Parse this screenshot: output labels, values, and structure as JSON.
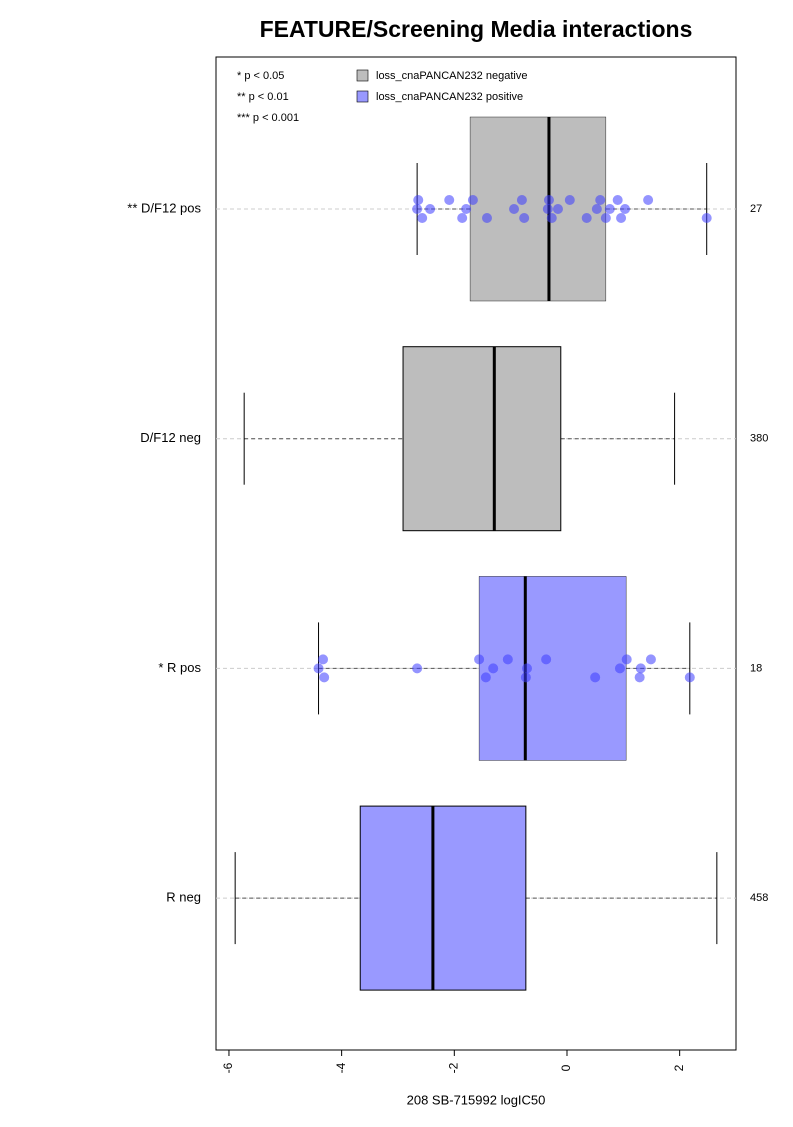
{
  "chart_data": {
    "type": "box",
    "title": "FEATURE/Screening Media interactions",
    "x_label": "208 SB-715992 logIC50",
    "xlim": [
      -6.23,
      3.0
    ],
    "xticks": [
      -6,
      -4,
      -2,
      0,
      2
    ],
    "notes": [
      "* p < 0.05",
      "** p < 0.01",
      "*** p < 0.001"
    ],
    "series": [
      {
        "name": "loss_cnaPANCAN232 negative",
        "color": "#bdbdbd"
      },
      {
        "name": "loss_cnaPANCAN232 positive",
        "color": "#9999ff"
      }
    ],
    "categories": [
      "** D/F12 pos",
      "D/F12 neg",
      "* R pos",
      "R neg"
    ],
    "counts": [
      "27",
      "380",
      "18",
      "458"
    ],
    "groups": [
      0,
      0,
      1,
      1
    ],
    "positive": [
      true,
      false,
      true,
      false
    ],
    "whisker_low": [
      -2.66,
      -5.73,
      -4.41,
      -5.89
    ],
    "q1": [
      -1.72,
      -2.91,
      -1.56,
      -3.67
    ],
    "median": [
      -0.32,
      -1.29,
      -0.74,
      -2.38
    ],
    "q3": [
      0.69,
      -0.11,
      1.05,
      -0.73
    ],
    "whisker_high": [
      2.48,
      1.91,
      2.18,
      2.66
    ],
    "points": [
      [
        -2.66,
        -2.64,
        -2.57,
        -2.43,
        -2.09,
        -1.86,
        -1.79,
        -1.67,
        -1.42,
        -0.94,
        -0.8,
        -0.76,
        -0.34,
        -0.32,
        -0.27,
        -0.16,
        0.05,
        0.35,
        0.53,
        0.59,
        0.69,
        0.76,
        0.9,
        0.96,
        1.03,
        1.44,
        2.48
      ],
      null,
      [
        -4.41,
        -4.33,
        -4.31,
        -2.66,
        -1.56,
        -1.44,
        -1.31,
        -1.05,
        -0.73,
        -0.71,
        -0.37,
        0.5,
        0.94,
        1.06,
        1.29,
        1.31,
        1.49,
        2.18
      ],
      null
    ]
  }
}
